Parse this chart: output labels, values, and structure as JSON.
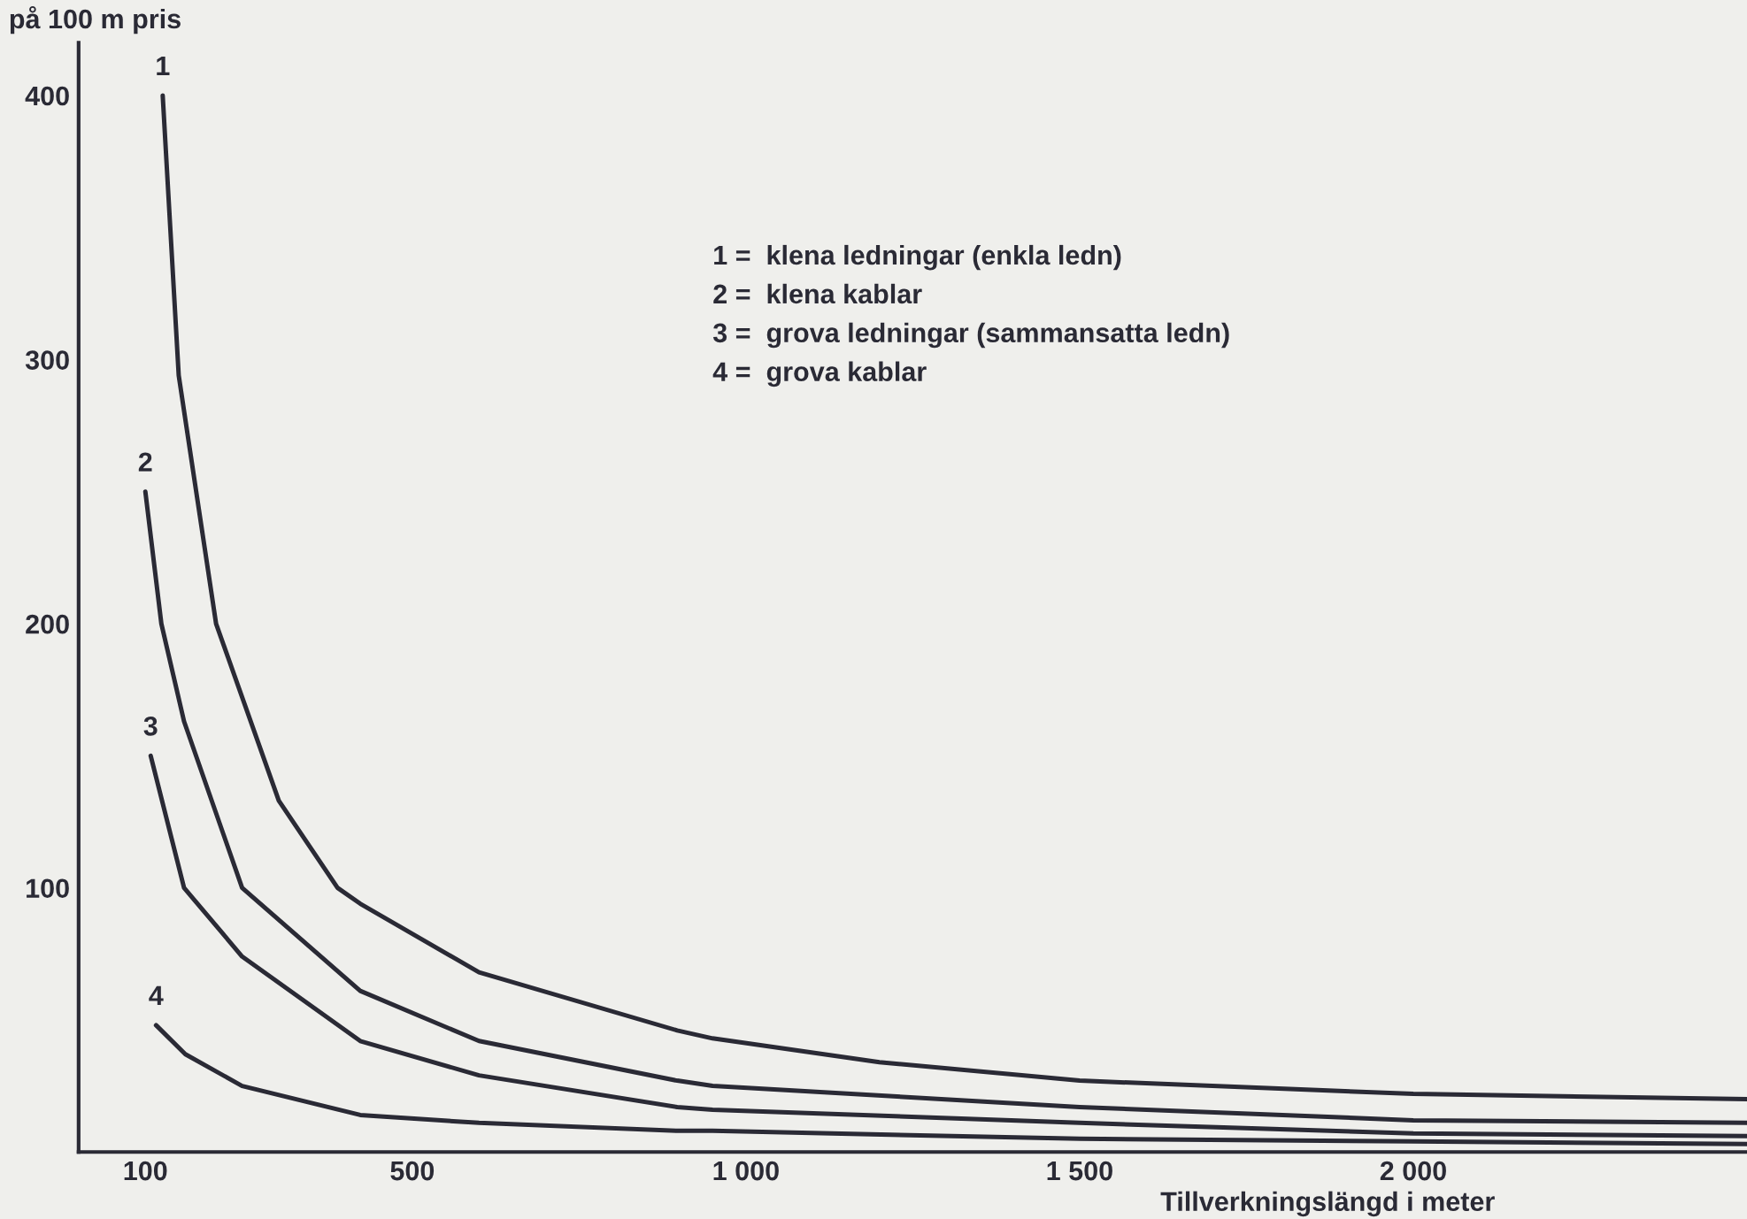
{
  "chart_data": {
    "type": "line",
    "ylabel": "på 100 m pris",
    "xlabel": "Tillverkningslängd i meter",
    "xlim": [
      0,
      2500
    ],
    "ylim": [
      0,
      420
    ],
    "xticks": [
      100,
      500,
      {
        "value": 1000,
        "label": "1 000"
      },
      {
        "value": 1500,
        "label": "1 500"
      },
      {
        "value": 2000,
        "label": "2 000"
      }
    ],
    "yticks": [
      100,
      200,
      300,
      400
    ],
    "grid": false,
    "legend": false,
    "marker": "none",
    "line_style": "solid",
    "series": [
      {
        "color": "#2a2a35",
        "x": [
          126,
          150,
          206,
          300,
          388,
          422,
          600,
          897,
          950,
          1200,
          1500,
          2000,
          2500
        ],
        "values": [
          400,
          294,
          200,
          133,
          100,
          94,
          68,
          46,
          43,
          34,
          27,
          22,
          20
        ]
      },
      {
        "color": "#2a2a35",
        "x": [
          100,
          124,
          158,
          245,
          422,
          600,
          897,
          950,
          1500,
          2000,
          2500
        ],
        "values": [
          250,
          200,
          163,
          100,
          61,
          42,
          27,
          25,
          17,
          12,
          11
        ]
      },
      {
        "color": "#2a2a35",
        "x": [
          108,
          158,
          245,
          422,
          600,
          897,
          950,
          1500,
          2000,
          2500
        ],
        "values": [
          150,
          100,
          74,
          42,
          29,
          17,
          16,
          11,
          7,
          6
        ]
      },
      {
        "color": "#2a2a35",
        "x": [
          116,
          160,
          245,
          422,
          600,
          897,
          950,
          1500,
          2000,
          2500
        ],
        "values": [
          48,
          37,
          25,
          14,
          11,
          8,
          8,
          5,
          4,
          3
        ]
      }
    ],
    "annotations": [
      {
        "text": "1",
        "x": 126,
        "y": 400
      },
      {
        "text": "2",
        "x": 100,
        "y": 250
      },
      {
        "text": "3",
        "x": 108,
        "y": 150
      },
      {
        "text": "4",
        "x": 116,
        "y": 48
      },
      "1 =  klena ledningar (enkla ledn)",
      "2 =  klena kablar",
      "3 =  grova ledningar (sammansatta ledn)",
      "4 =  grova kablar"
    ]
  }
}
